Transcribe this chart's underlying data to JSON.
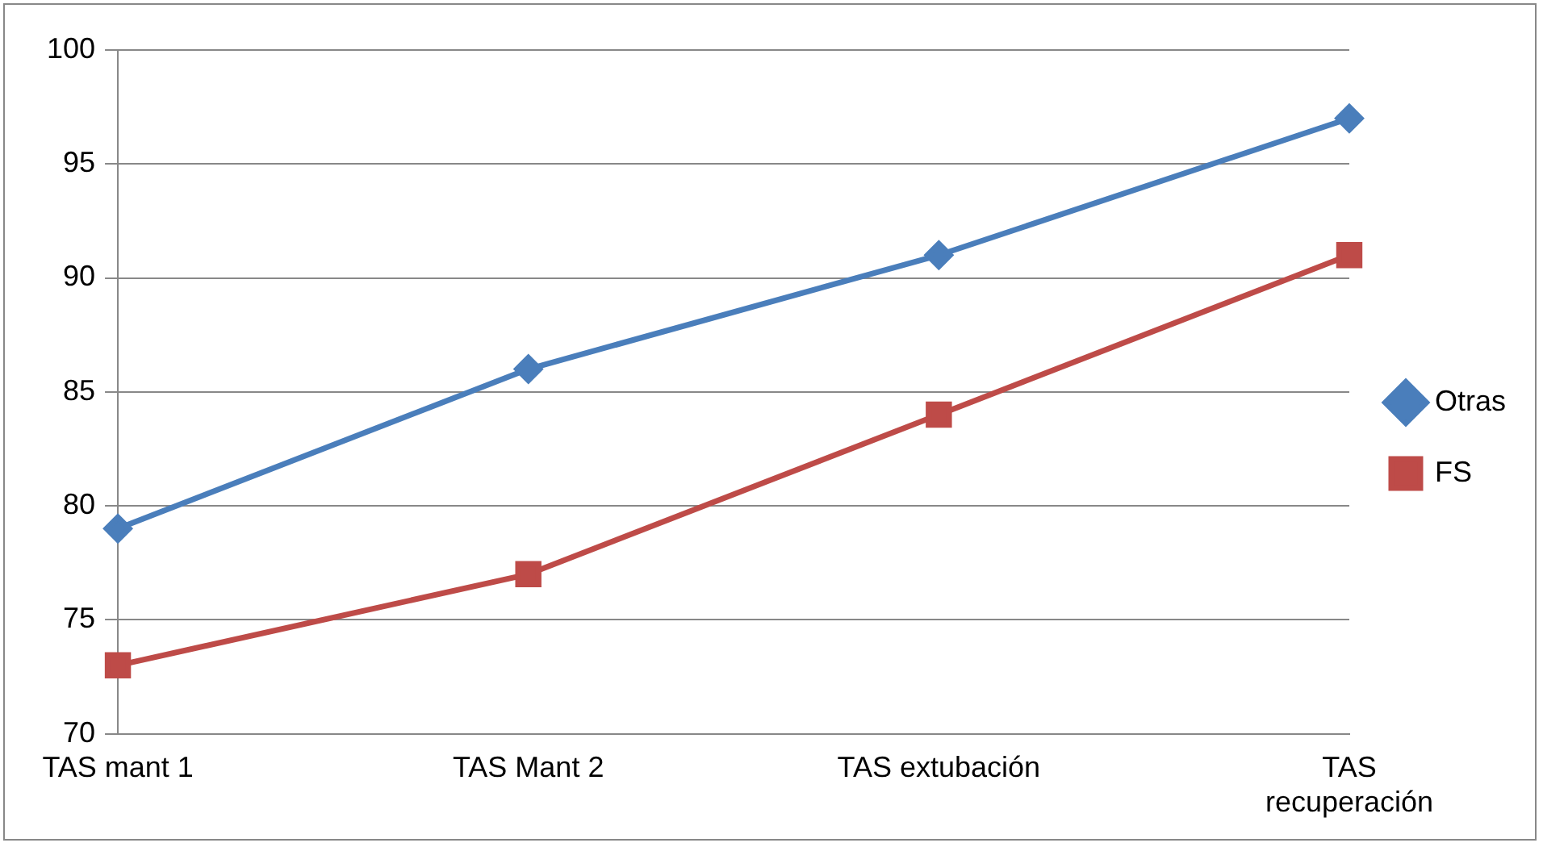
{
  "chart_data": {
    "type": "line",
    "categories": [
      "TAS mant 1",
      "TAS Mant 2",
      "TAS extubación",
      "TAS recuperación"
    ],
    "series": [
      {
        "name": "Otras",
        "color": "#4a7ebb",
        "marker": "diamond",
        "values": [
          79,
          86,
          91,
          97
        ]
      },
      {
        "name": "FS",
        "color": "#be4b48",
        "marker": "square",
        "values": [
          73,
          77,
          84,
          91
        ]
      }
    ],
    "ylim": [
      70,
      100
    ],
    "yticks": [
      70,
      75,
      80,
      85,
      90,
      95,
      100
    ],
    "grid": "y",
    "legend": "right",
    "line_style": "solid"
  }
}
